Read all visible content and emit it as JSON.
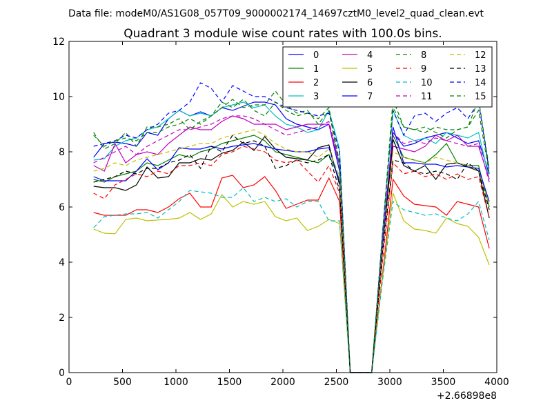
{
  "header": {
    "data_file": "Data file: modeM0/AS1G08_057T09_9000002174_14697cztM0_level2_quad_clean.evt"
  },
  "chart_data": {
    "type": "line",
    "title": "Quadrant 3 module wise count rates with 100.0s bins.",
    "xlabel": "",
    "ylabel": "",
    "x_offset_label": "+2.66898e8",
    "xlim": [
      0,
      4000
    ],
    "ylim": [
      0,
      12
    ],
    "xticks": [
      0,
      500,
      1000,
      1500,
      2000,
      2500,
      3000,
      3500,
      4000
    ],
    "yticks": [
      0,
      2,
      4,
      6,
      8,
      10,
      12
    ],
    "grid": false,
    "legend_position": "top-right",
    "x": [
      230,
      330,
      430,
      530,
      630,
      730,
      830,
      930,
      1030,
      1130,
      1230,
      1330,
      1430,
      1530,
      1630,
      1730,
      1830,
      1930,
      2030,
      2130,
      2230,
      2330,
      2430,
      2530,
      2630,
      2730,
      2830,
      2930,
      3030,
      3130,
      3230,
      3330,
      3430,
      3530,
      3630,
      3730,
      3830,
      3930
    ],
    "series": [
      {
        "name": "0",
        "color": "#0000ff",
        "dash": "solid",
        "values": [
          7.8,
          8.3,
          8.35,
          8.3,
          8.2,
          8.7,
          8.6,
          9.2,
          9.5,
          9.3,
          9.45,
          9.3,
          9.6,
          9.5,
          9.65,
          9.8,
          9.8,
          9.7,
          9.2,
          9.0,
          8.9,
          8.8,
          9.0,
          7.3,
          0,
          0,
          0,
          4.5,
          8.7,
          8.2,
          8.3,
          8.5,
          8.6,
          8.7,
          8.5,
          8.3,
          8.4,
          7.2
        ]
      },
      {
        "name": "1",
        "color": "#008000",
        "dash": "solid",
        "values": [
          7.0,
          6.9,
          7.1,
          7.2,
          7.3,
          7.6,
          7.5,
          7.7,
          7.9,
          7.8,
          8.0,
          8.1,
          8.3,
          8.4,
          8.5,
          8.6,
          8.4,
          8.0,
          7.9,
          7.8,
          7.7,
          7.6,
          7.9,
          7.0,
          0,
          0,
          0,
          4.5,
          8.6,
          7.8,
          7.7,
          7.6,
          7.9,
          8.3,
          7.6,
          7.5,
          7.5,
          6.0
        ]
      },
      {
        "name": "2",
        "color": "#ff0000",
        "dash": "solid",
        "values": [
          5.8,
          5.7,
          5.7,
          5.7,
          5.9,
          5.9,
          5.8,
          6.0,
          6.3,
          6.5,
          6.0,
          6.0,
          7.05,
          7.15,
          6.7,
          6.8,
          7.1,
          6.6,
          5.95,
          6.1,
          6.25,
          6.25,
          7.05,
          6.2,
          0,
          0,
          0,
          3.5,
          7.0,
          6.4,
          6.1,
          6.05,
          6.0,
          5.7,
          6.2,
          6.1,
          6.0,
          4.5
        ]
      },
      {
        "name": "3",
        "color": "#00bfbf",
        "dash": "solid",
        "values": [
          7.7,
          7.75,
          8.2,
          8.4,
          8.5,
          8.8,
          8.9,
          9.2,
          9.5,
          9.3,
          9.4,
          9.3,
          9.6,
          9.7,
          9.8,
          9.6,
          9.7,
          9.3,
          9.0,
          8.9,
          8.7,
          8.8,
          9.5,
          8.1,
          0,
          0,
          0,
          5.0,
          9.5,
          8.6,
          8.4,
          8.5,
          8.3,
          8.7,
          8.6,
          8.5,
          8.7,
          7.0
        ]
      },
      {
        "name": "4",
        "color": "#bf00bf",
        "dash": "solid",
        "values": [
          7.5,
          7.3,
          8.3,
          7.6,
          7.9,
          8.0,
          7.9,
          8.3,
          8.6,
          8.9,
          8.8,
          8.8,
          9.1,
          9.3,
          9.2,
          9.0,
          9.0,
          9.0,
          8.8,
          8.9,
          9.0,
          9.0,
          9.0,
          7.5,
          0,
          0,
          0,
          4.8,
          8.2,
          8.1,
          8.0,
          8.2,
          8.6,
          8.4,
          8.6,
          8.2,
          8.2,
          7.0
        ]
      },
      {
        "name": "5",
        "color": "#bfbf00",
        "dash": "solid",
        "values": [
          5.2,
          5.05,
          5.03,
          5.55,
          5.6,
          5.5,
          5.53,
          5.55,
          5.6,
          5.8,
          5.55,
          5.75,
          6.45,
          6.0,
          6.2,
          6.1,
          6.2,
          5.65,
          5.5,
          5.6,
          5.15,
          5.3,
          5.55,
          5.4,
          0,
          0,
          0,
          3.4,
          6.5,
          5.5,
          5.2,
          5.15,
          5.05,
          5.6,
          5.4,
          5.3,
          4.9,
          3.9
        ]
      },
      {
        "name": "6",
        "color": "#000000",
        "dash": "solid",
        "values": [
          6.75,
          6.7,
          6.7,
          6.6,
          6.8,
          7.45,
          7.05,
          7.1,
          7.6,
          7.6,
          7.75,
          7.7,
          7.95,
          8.05,
          8.35,
          8.05,
          8.55,
          8.1,
          7.8,
          7.75,
          7.7,
          8.15,
          8.25,
          6.8,
          0,
          0,
          0,
          4.4,
          8.45,
          7.5,
          7.3,
          7.5,
          7.0,
          7.55,
          7.6,
          7.45,
          7.3,
          5.6
        ]
      },
      {
        "name": "7",
        "color": "#0000ff",
        "dash": "solid",
        "values": [
          7.1,
          6.95,
          6.95,
          6.95,
          7.3,
          7.75,
          7.35,
          7.6,
          8.15,
          8.1,
          8.1,
          8.2,
          8.1,
          8.2,
          8.25,
          8.3,
          8.2,
          8.1,
          8.05,
          8.0,
          8.0,
          8.1,
          8.15,
          6.9,
          0,
          0,
          0,
          4.5,
          8.9,
          7.6,
          7.6,
          7.55,
          7.55,
          7.45,
          7.5,
          7.45,
          7.4,
          6.2
        ]
      },
      {
        "name": "8",
        "color": "#008000",
        "dash": "dashed",
        "values": [
          8.7,
          8.1,
          8.3,
          8.7,
          8.2,
          8.9,
          8.9,
          9.0,
          9.2,
          8.8,
          9.1,
          9.3,
          9.6,
          9.9,
          9.6,
          9.7,
          9.7,
          10.2,
          9.7,
          9.4,
          9.5,
          9.0,
          9.5,
          7.5,
          0,
          0,
          0,
          5.0,
          9.9,
          8.9,
          8.8,
          8.9,
          8.7,
          8.5,
          8.8,
          8.9,
          9.9,
          7.4
        ]
      },
      {
        "name": "9",
        "color": "#ff0000",
        "dash": "dashed",
        "values": [
          6.5,
          6.3,
          6.8,
          7.0,
          7.2,
          7.1,
          7.3,
          7.2,
          7.5,
          7.5,
          7.6,
          7.5,
          7.9,
          8.0,
          8.2,
          8.1,
          8.0,
          7.7,
          7.6,
          7.7,
          7.3,
          6.9,
          7.5,
          6.5,
          0,
          0,
          0,
          4.0,
          7.6,
          7.2,
          7.3,
          7.1,
          7.2,
          7.0,
          7.2,
          7.0,
          7.1,
          5.6
        ]
      },
      {
        "name": "10",
        "color": "#00bfbf",
        "dash": "dashed",
        "values": [
          5.25,
          5.65,
          5.7,
          5.75,
          5.75,
          5.8,
          5.6,
          5.9,
          6.2,
          6.6,
          6.55,
          6.5,
          6.35,
          6.35,
          6.7,
          6.2,
          6.35,
          6.2,
          6.3,
          6.0,
          6.2,
          6.2,
          5.5,
          5.5,
          0,
          0,
          0,
          3.3,
          6.2,
          5.9,
          5.8,
          5.7,
          5.75,
          5.6,
          5.5,
          5.75,
          6.2,
          4.8
        ]
      },
      {
        "name": "11",
        "color": "#bf00bf",
        "dash": "dashed",
        "values": [
          7.6,
          7.8,
          8.0,
          8.2,
          7.9,
          8.2,
          8.4,
          8.6,
          8.8,
          8.8,
          8.9,
          9.0,
          9.2,
          9.3,
          9.3,
          9.2,
          9.0,
          8.8,
          8.6,
          8.7,
          8.8,
          8.9,
          9.1,
          7.6,
          0,
          0,
          0,
          4.8,
          8.7,
          8.3,
          8.4,
          8.3,
          8.5,
          8.4,
          8.3,
          8.2,
          8.3,
          6.9
        ]
      },
      {
        "name": "12",
        "color": "#bfbf00",
        "dash": "dashed",
        "values": [
          7.3,
          7.4,
          7.6,
          7.5,
          7.7,
          7.8,
          7.9,
          8.0,
          8.1,
          8.2,
          8.3,
          8.3,
          8.5,
          8.6,
          8.7,
          8.8,
          8.6,
          8.3,
          8.1,
          8.0,
          8.0,
          7.8,
          8.1,
          7.1,
          0,
          0,
          0,
          4.4,
          8.0,
          7.8,
          7.7,
          7.6,
          7.8,
          7.7,
          7.6,
          7.5,
          7.3,
          6.1
        ]
      },
      {
        "name": "13",
        "color": "#000000",
        "dash": "dashed",
        "values": [
          6.9,
          7.0,
          7.1,
          7.3,
          7.2,
          7.4,
          7.4,
          7.6,
          7.7,
          7.9,
          7.4,
          8.2,
          8.0,
          8.6,
          8.3,
          8.4,
          8.2,
          7.4,
          7.5,
          7.7,
          7.6,
          7.7,
          7.9,
          6.6,
          0,
          0,
          0,
          4.3,
          7.7,
          7.6,
          7.3,
          7.2,
          7.3,
          7.2,
          7.0,
          7.6,
          7.3,
          5.9
        ]
      },
      {
        "name": "14",
        "color": "#0000ff",
        "dash": "dashed",
        "values": [
          8.2,
          8.3,
          8.4,
          8.6,
          8.5,
          8.8,
          9.0,
          9.4,
          9.5,
          9.8,
          10.5,
          10.3,
          9.8,
          10.4,
          10.2,
          10.0,
          10.0,
          9.8,
          9.6,
          9.5,
          9.4,
          9.3,
          9.4,
          8.0,
          0,
          0,
          0,
          5.0,
          9.5,
          8.6,
          9.3,
          9.4,
          9.1,
          9.4,
          9.6,
          9.2,
          9.8,
          7.3
        ]
      },
      {
        "name": "15",
        "color": "#008000",
        "dash": "dashed",
        "values": [
          8.6,
          8.2,
          8.4,
          8.5,
          8.4,
          8.7,
          8.7,
          8.9,
          9.0,
          9.2,
          9.0,
          9.3,
          9.8,
          9.6,
          9.9,
          9.5,
          9.3,
          9.8,
          9.5,
          9.3,
          9.4,
          9.2,
          9.6,
          7.6,
          0,
          0,
          0,
          4.9,
          9.6,
          8.9,
          8.8,
          8.7,
          8.9,
          8.8,
          8.8,
          8.9,
          9.5,
          7.2
        ]
      }
    ]
  }
}
